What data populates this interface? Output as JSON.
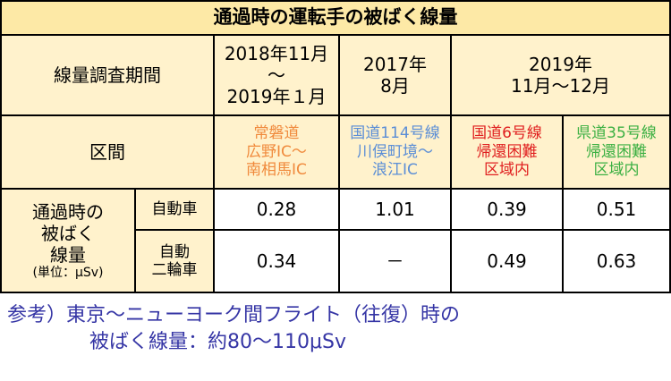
{
  "title": "通過時の運転手の被ばく線量",
  "header": {
    "period_label": "線量調査期間",
    "periods": [
      [
        "2018年11月",
        "～",
        "2019年１月"
      ],
      [
        "2017年",
        "8月"
      ],
      [
        "2019年",
        "11月～12月"
      ]
    ],
    "section_label": "区間",
    "sections": [
      {
        "lines": [
          "常磐道",
          "広野IC～",
          "南相馬IC"
        ],
        "color": "#f08a3c"
      },
      {
        "lines": [
          "国道114号線",
          "川俣町境～",
          "浪江IC"
        ],
        "color": "#5b8ed6"
      },
      {
        "lines": [
          "国道6号線",
          "帰還困難",
          "区域内"
        ],
        "color": "#e02020"
      },
      {
        "lines": [
          "県道35号線",
          "帰還困難",
          "区域内"
        ],
        "color": "#3cb043"
      }
    ]
  },
  "rows_label": [
    "通過時の",
    "被ばく",
    "線量",
    "(単位：μSv)"
  ],
  "rows": [
    {
      "vehicle": [
        "自動車"
      ],
      "values": [
        "0.28",
        "1.01",
        "0.39",
        "0.51"
      ]
    },
    {
      "vehicle": [
        "自動",
        "二輪車"
      ],
      "values": [
        "0.34",
        "－",
        "0.49",
        "0.63"
      ]
    }
  ],
  "note": [
    "参考）東京～ニューヨーク間フライト（往復）時の",
    "被ばく線量：約80～110μSv"
  ]
}
